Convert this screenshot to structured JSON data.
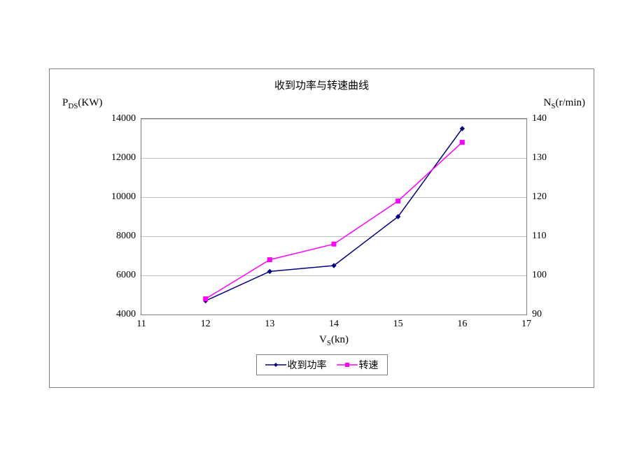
{
  "chart": {
    "type": "line-dual-axis",
    "title": "收到功率与转速曲线",
    "title_fontsize": 15,
    "background_color": "#ffffff",
    "border_color": "#808080",
    "grid_color": "#c0c0c0",
    "font_family": "SimSun",
    "x_axis": {
      "label_html": "V<sub>S</sub>(kn)",
      "label_plain": "VS(kn)",
      "min": 11,
      "max": 17,
      "tick_step": 1,
      "ticks": [
        11,
        12,
        13,
        14,
        15,
        16,
        17
      ],
      "label_fontsize": 15,
      "tick_fontsize": 14
    },
    "y1_axis": {
      "label_html": "P<sub>DS</sub>(KW)",
      "label_plain": "PDS(KW)",
      "min": 4000,
      "max": 14000,
      "tick_step": 2000,
      "ticks": [
        4000,
        6000,
        8000,
        10000,
        12000,
        14000
      ],
      "label_fontsize": 15,
      "tick_fontsize": 14
    },
    "y2_axis": {
      "label_html": "N<sub>S</sub>(r/min)",
      "label_plain": "NS(r/min)",
      "min": 90,
      "max": 140,
      "tick_step": 10,
      "ticks": [
        90,
        100,
        110,
        120,
        130,
        140
      ],
      "label_fontsize": 15,
      "tick_fontsize": 14
    },
    "series": [
      {
        "name": "收到功率",
        "axis": "y1",
        "color": "#000080",
        "line_width": 1.5,
        "marker": "diamond",
        "marker_size": 6,
        "marker_fill": "#000080",
        "x": [
          12,
          13,
          14,
          15,
          16
        ],
        "y": [
          4700,
          6200,
          6500,
          9000,
          13500
        ]
      },
      {
        "name": "转速",
        "axis": "y2",
        "color": "#ff00ff",
        "line_width": 1.5,
        "marker": "square",
        "marker_size": 6,
        "marker_fill": "#ff00ff",
        "x": [
          12,
          13,
          14,
          15,
          16
        ],
        "y": [
          94,
          104,
          108,
          119,
          134
        ]
      }
    ],
    "legend": {
      "position": "bottom-center",
      "items": [
        "收到功率",
        "转速"
      ]
    }
  }
}
